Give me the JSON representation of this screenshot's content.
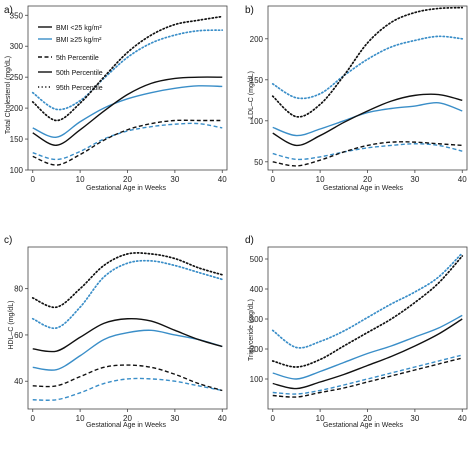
{
  "colors": {
    "bmi_low": "#111111",
    "bmi_high": "#3a8ec8"
  },
  "legend": {
    "items": [
      {
        "label": "BMI <25 kg/m²",
        "style": "solid",
        "color": "#111111"
      },
      {
        "label": "BMI ≥25 kg/m²",
        "style": "solid",
        "color": "#3a8ec8"
      },
      {
        "label": "5th Percentile",
        "style": "dashed",
        "color": "#111111"
      },
      {
        "label": "50th Percentile",
        "style": "solid",
        "color": "#111111"
      },
      {
        "label": "95th Percentile",
        "style": "dotted",
        "color": "#111111"
      }
    ]
  },
  "chart_data": [
    {
      "panel_label": "a)",
      "type": "line",
      "xlabel": "Gestational Age in Weeks",
      "ylabel": "Total Cholesterol (mg/dL)",
      "xlim": [
        -1,
        41
      ],
      "ylim": [
        100,
        365
      ],
      "xticks": [
        0,
        10,
        20,
        30,
        40
      ],
      "yticks": [
        100,
        150,
        200,
        250,
        300,
        350
      ],
      "x": [
        0,
        5,
        10,
        15,
        20,
        25,
        30,
        35,
        40
      ],
      "series": [
        {
          "group": "BMI <25",
          "percentile": "95th",
          "values": [
            210,
            180,
            208,
            250,
            290,
            318,
            335,
            342,
            348
          ]
        },
        {
          "group": "BMI <25",
          "percentile": "50th",
          "values": [
            160,
            140,
            165,
            195,
            222,
            240,
            248,
            250,
            250
          ]
        },
        {
          "group": "BMI <25",
          "percentile": "5th",
          "values": [
            122,
            108,
            125,
            148,
            165,
            175,
            180,
            180,
            180
          ]
        },
        {
          "group": "BMI ≥25",
          "percentile": "95th",
          "values": [
            225,
            198,
            212,
            248,
            282,
            305,
            318,
            325,
            326
          ]
        },
        {
          "group": "BMI ≥25",
          "percentile": "50th",
          "values": [
            168,
            153,
            178,
            200,
            215,
            225,
            232,
            236,
            235
          ]
        },
        {
          "group": "BMI ≥25",
          "percentile": "5th",
          "values": [
            128,
            117,
            130,
            150,
            163,
            170,
            174,
            175,
            168
          ]
        }
      ]
    },
    {
      "panel_label": "b)",
      "type": "line",
      "xlabel": "Gestational Age in Weeks",
      "ylabel": "LDL–C (mg/dL)",
      "xlim": [
        -1,
        41
      ],
      "ylim": [
        40,
        240
      ],
      "xticks": [
        0,
        10,
        20,
        30,
        40
      ],
      "yticks": [
        50,
        100,
        150,
        200
      ],
      "x": [
        0,
        5,
        10,
        15,
        20,
        25,
        30,
        35,
        40
      ],
      "series": [
        {
          "group": "BMI <25",
          "percentile": "95th",
          "values": [
            130,
            105,
            120,
            155,
            195,
            220,
            232,
            237,
            238
          ]
        },
        {
          "group": "BMI <25",
          "percentile": "50th",
          "values": [
            85,
            70,
            82,
            98,
            112,
            124,
            131,
            132,
            125
          ]
        },
        {
          "group": "BMI <25",
          "percentile": "5th",
          "values": [
            50,
            45,
            52,
            62,
            70,
            74,
            74,
            72,
            70
          ]
        },
        {
          "group": "BMI ≥25",
          "percentile": "95th",
          "values": [
            145,
            128,
            133,
            155,
            175,
            190,
            198,
            203,
            200
          ]
        },
        {
          "group": "BMI ≥25",
          "percentile": "50th",
          "values": [
            92,
            82,
            90,
            100,
            110,
            115,
            118,
            122,
            112
          ]
        },
        {
          "group": "BMI ≥25",
          "percentile": "5th",
          "values": [
            60,
            53,
            56,
            62,
            67,
            70,
            72,
            70,
            63
          ]
        }
      ]
    },
    {
      "panel_label": "c)",
      "type": "line",
      "xlabel": "Gestational Age in Weeks",
      "ylabel": "HDL–C (mg/dL)",
      "xlim": [
        -1,
        41
      ],
      "ylim": [
        28,
        98
      ],
      "xticks": [
        0,
        10,
        20,
        30,
        40
      ],
      "yticks": [
        40,
        60,
        80
      ],
      "x": [
        0,
        5,
        10,
        15,
        20,
        25,
        30,
        35,
        40
      ],
      "series": [
        {
          "group": "BMI <25",
          "percentile": "95th",
          "values": [
            76,
            72,
            80,
            90,
            95,
            95,
            93,
            89,
            86
          ]
        },
        {
          "group": "BMI <25",
          "percentile": "50th",
          "values": [
            54,
            53,
            59,
            65,
            67,
            66,
            62,
            58,
            55
          ]
        },
        {
          "group": "BMI <25",
          "percentile": "5th",
          "values": [
            38,
            38,
            42,
            46,
            47,
            46,
            43,
            39,
            36
          ]
        },
        {
          "group": "BMI ≥25",
          "percentile": "95th",
          "values": [
            67,
            63,
            72,
            85,
            91,
            92,
            90,
            87,
            84
          ]
        },
        {
          "group": "BMI ≥25",
          "percentile": "50th",
          "values": [
            46,
            45,
            51,
            58,
            61,
            62,
            60,
            58,
            55
          ]
        },
        {
          "group": "BMI ≥25",
          "percentile": "5th",
          "values": [
            32,
            32,
            35,
            39,
            41,
            41,
            40,
            38,
            36
          ]
        }
      ]
    },
    {
      "panel_label": "d)",
      "type": "line",
      "xlabel": "Gestational Age in Weeks",
      "ylabel": "Triglyceride (mg/dL)",
      "xlim": [
        -1,
        41
      ],
      "ylim": [
        0,
        540
      ],
      "xticks": [
        0,
        10,
        20,
        30,
        40
      ],
      "yticks": [
        100,
        200,
        300,
        400,
        500
      ],
      "x": [
        0,
        5,
        10,
        15,
        20,
        25,
        30,
        35,
        40
      ],
      "series": [
        {
          "group": "BMI <25",
          "percentile": "95th",
          "values": [
            160,
            140,
            165,
            210,
            255,
            300,
            355,
            420,
            510
          ]
        },
        {
          "group": "BMI <25",
          "percentile": "50th",
          "values": [
            85,
            68,
            90,
            115,
            145,
            175,
            210,
            250,
            300
          ]
        },
        {
          "group": "BMI <25",
          "percentile": "5th",
          "values": [
            45,
            40,
            55,
            70,
            90,
            110,
            130,
            150,
            170
          ]
        },
        {
          "group": "BMI ≥25",
          "percentile": "95th",
          "values": [
            262,
            205,
            225,
            260,
            305,
            350,
            390,
            440,
            520
          ]
        },
        {
          "group": "BMI ≥25",
          "percentile": "50th",
          "values": [
            120,
            100,
            125,
            155,
            185,
            210,
            240,
            270,
            312
          ]
        },
        {
          "group": "BMI ≥25",
          "percentile": "5th",
          "values": [
            55,
            50,
            62,
            80,
            100,
            120,
            140,
            160,
            180
          ]
        }
      ]
    }
  ]
}
